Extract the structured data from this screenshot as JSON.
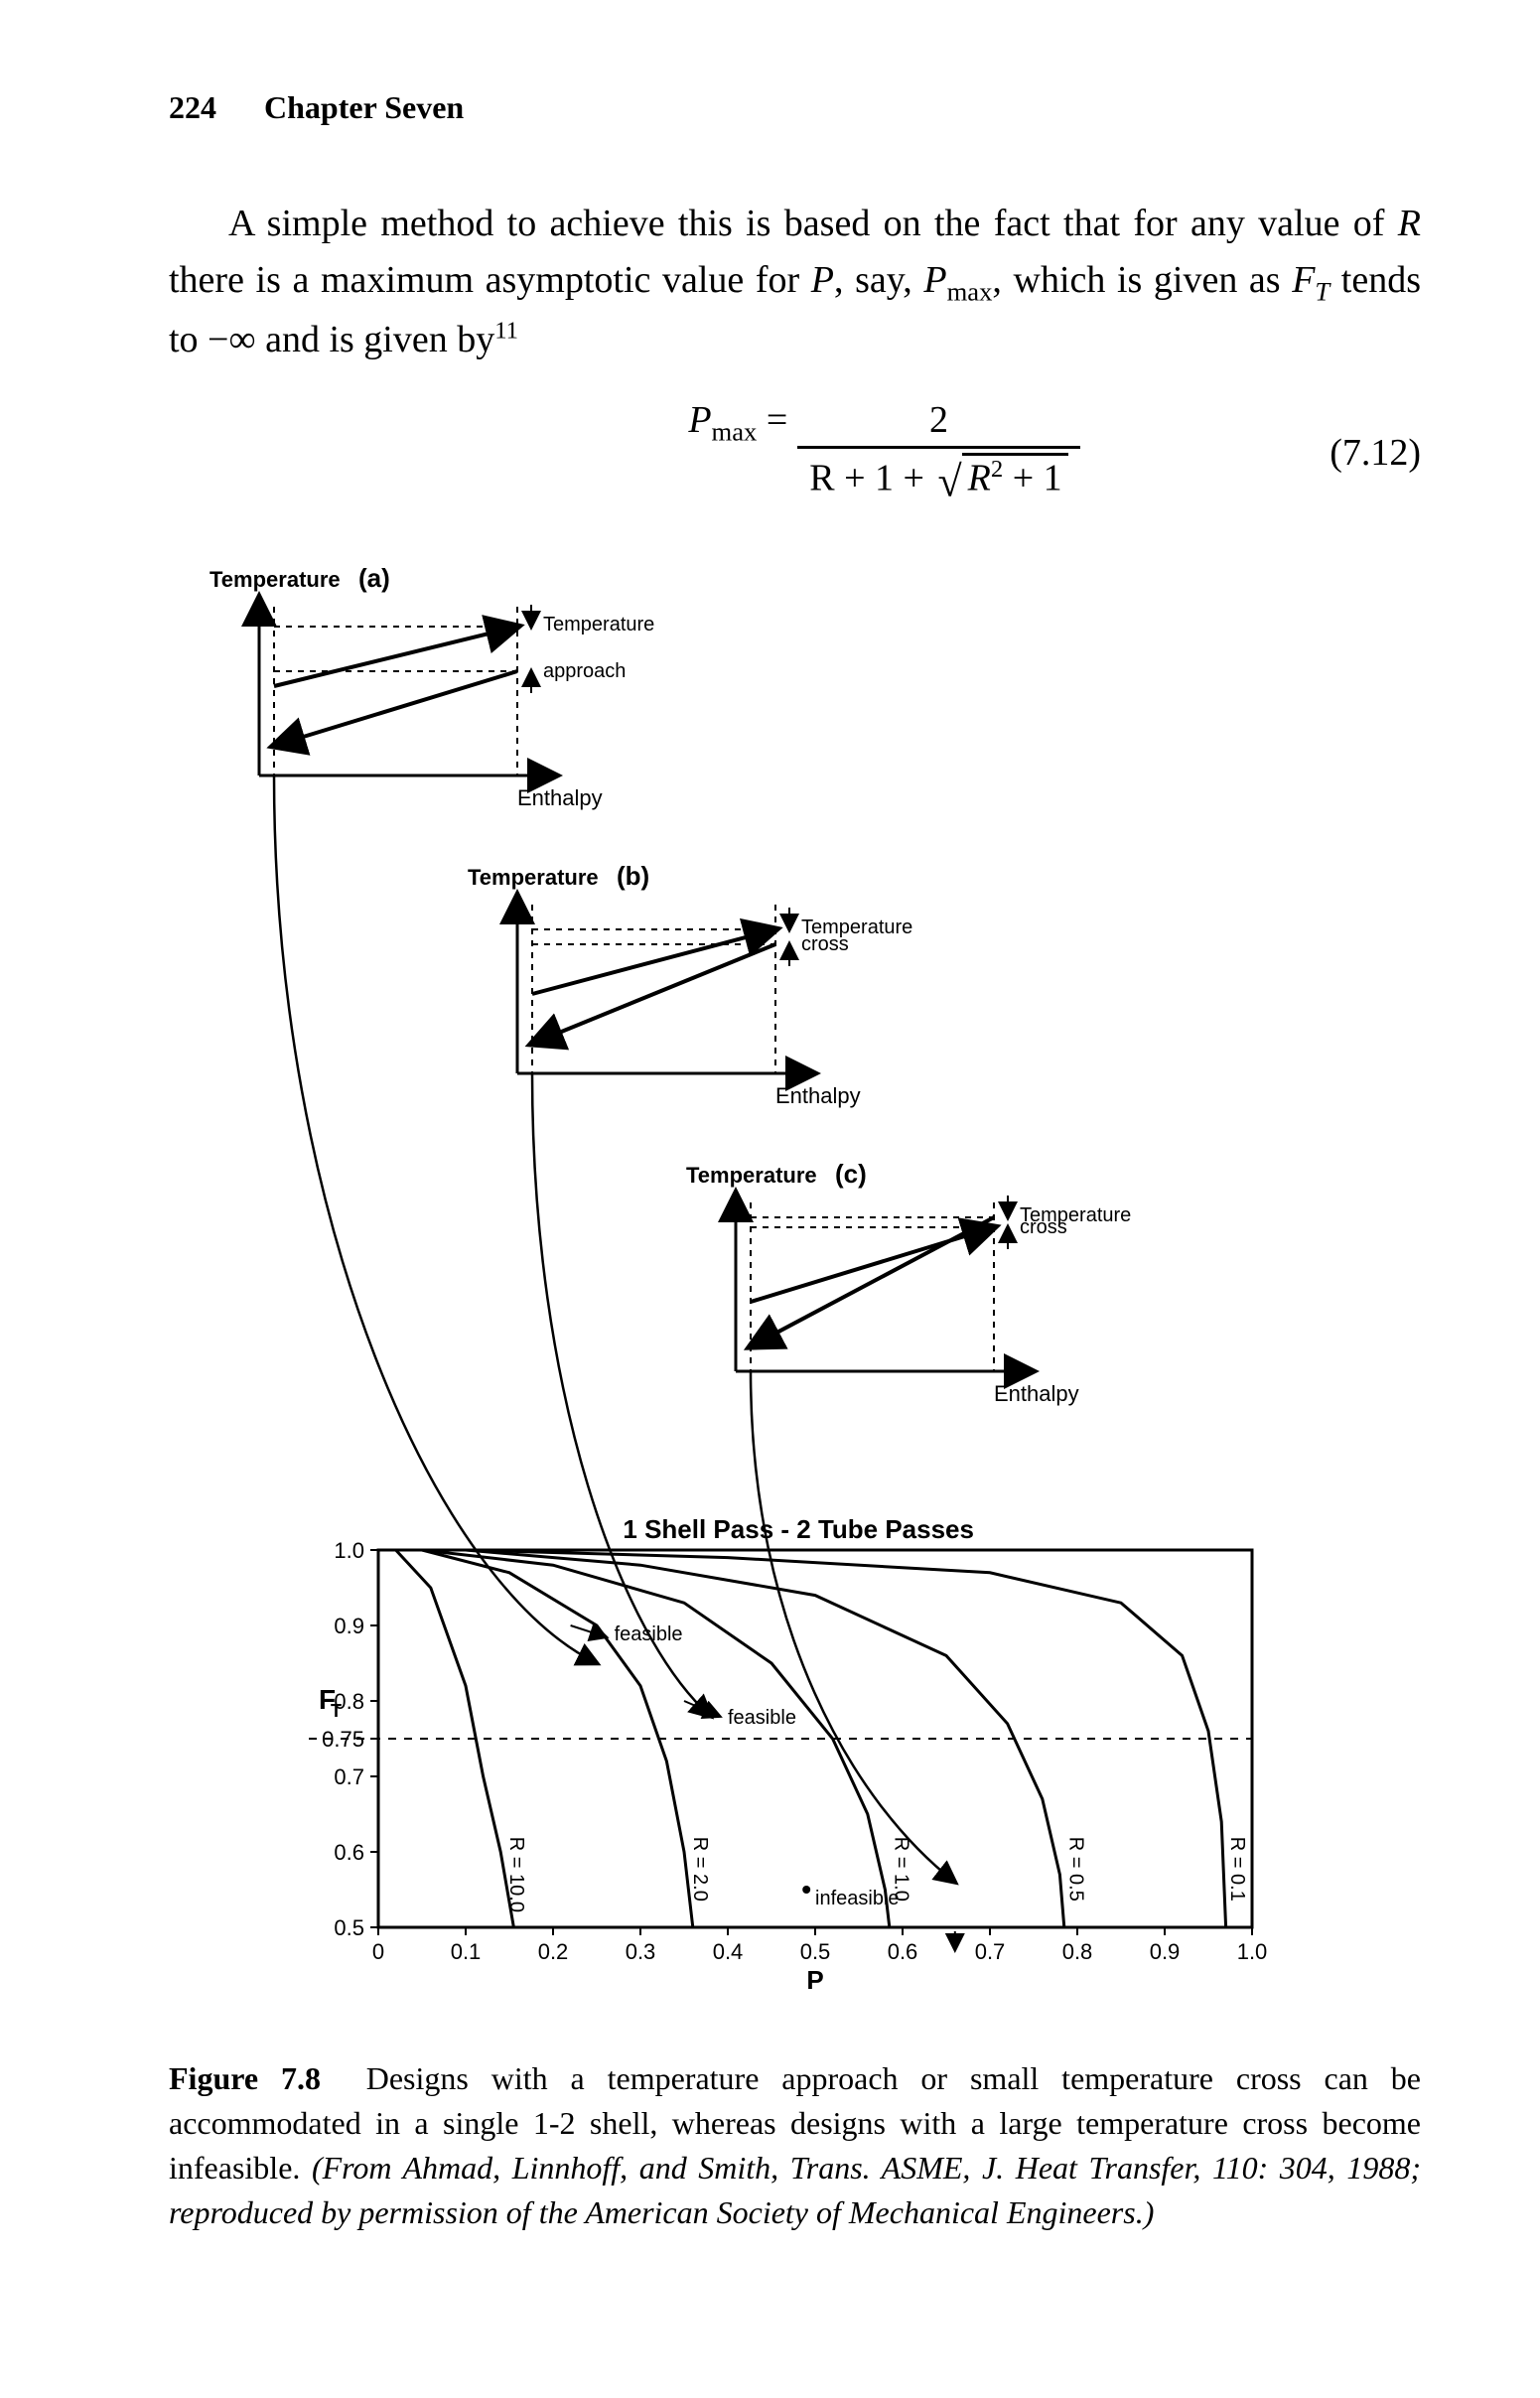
{
  "header": {
    "page_number": "224",
    "chapter": "Chapter Seven"
  },
  "paragraph": {
    "text_html": "A simple method to achieve this is based on the fact that for any value of <span class='it'>R</span> there is a maximum asymptotic value for <span class='it'>P</span>, say, <span class='it'>P</span><sub>max</sub>, which is given as <span class='it'>F<sub>T</sub></span> tends to −∞ and is given by<sup>11</sup>"
  },
  "equation": {
    "lhs_html": "<span class='it'>P</span><sub>max</sub> =",
    "numerator": "2",
    "den_before": "R + 1 + ",
    "radicand_html": "<span class='it'>R</span><sup>2</sup> + 1",
    "number": "(7.12)"
  },
  "figure": {
    "panels": {
      "a": {
        "label": "(a)",
        "ylabel": "Temperature",
        "xlabel": "Enthalpy",
        "annot_top": "Temperature",
        "annot_bot": "approach"
      },
      "b": {
        "label": "(b)",
        "ylabel": "Temperature",
        "xlabel": "Enthalpy",
        "annot_top": "Temperature",
        "annot_bot": "cross"
      },
      "c": {
        "label": "(c)",
        "ylabel": "Temperature",
        "xlabel": "Enthalpy",
        "annot_top": "Temperature",
        "annot_bot": "cross"
      }
    },
    "chart": {
      "title": "1 Shell Pass - 2 Tube Passes",
      "ylabel": "F",
      "ylabel_sub": "T",
      "xlabel": "P",
      "xticks": [
        0,
        0.1,
        0.2,
        0.3,
        0.4,
        0.5,
        0.6,
        0.7,
        0.8,
        0.9,
        1.0
      ],
      "xtick_labels": [
        "0",
        "0.1",
        "0.2",
        "0.3",
        "0.4",
        "0.5",
        "0.6",
        "0.7",
        "0.8",
        "0.9",
        "1.0"
      ],
      "yticks": [
        0.5,
        0.6,
        0.7,
        0.75,
        0.8,
        0.9,
        1.0
      ],
      "ytick_labels": [
        "0.5",
        "0.6",
        "0.7",
        "0.75",
        "0.8",
        "0.9",
        "1.0"
      ],
      "xlim": [
        0,
        1.0
      ],
      "ylim": [
        0.5,
        1.0
      ],
      "hline_y": 0.75,
      "curves": [
        {
          "label": "R = 10.0",
          "pts": [
            [
              0.02,
              1.0
            ],
            [
              0.06,
              0.95
            ],
            [
              0.1,
              0.82
            ],
            [
              0.12,
              0.7
            ],
            [
              0.14,
              0.6
            ],
            [
              0.155,
              0.5
            ]
          ]
        },
        {
          "label": "R = 2.0",
          "pts": [
            [
              0.05,
              1.0
            ],
            [
              0.15,
              0.97
            ],
            [
              0.25,
              0.9
            ],
            [
              0.3,
              0.82
            ],
            [
              0.33,
              0.72
            ],
            [
              0.35,
              0.6
            ],
            [
              0.36,
              0.5
            ]
          ]
        },
        {
          "label": "R = 1.0",
          "pts": [
            [
              0.05,
              1.0
            ],
            [
              0.2,
              0.98
            ],
            [
              0.35,
              0.93
            ],
            [
              0.45,
              0.85
            ],
            [
              0.52,
              0.75
            ],
            [
              0.56,
              0.65
            ],
            [
              0.58,
              0.55
            ],
            [
              0.585,
              0.5
            ]
          ]
        },
        {
          "label": "R = 0.5",
          "pts": [
            [
              0.1,
              1.0
            ],
            [
              0.3,
              0.98
            ],
            [
              0.5,
              0.94
            ],
            [
              0.65,
              0.86
            ],
            [
              0.72,
              0.77
            ],
            [
              0.76,
              0.67
            ],
            [
              0.78,
              0.57
            ],
            [
              0.785,
              0.5
            ]
          ]
        },
        {
          "label": "R = 0.1",
          "pts": [
            [
              0.1,
              1.0
            ],
            [
              0.4,
              0.99
            ],
            [
              0.7,
              0.97
            ],
            [
              0.85,
              0.93
            ],
            [
              0.92,
              0.86
            ],
            [
              0.95,
              0.76
            ],
            [
              0.965,
              0.64
            ],
            [
              0.97,
              0.5
            ]
          ]
        }
      ],
      "annotations": {
        "feasible1": "feasible",
        "feasible2": "feasible",
        "infeasible": "infeasible"
      },
      "colors": {
        "axis": "#000000",
        "curve": "#000000",
        "dash": "#000000",
        "bg": "#ffffff"
      },
      "line_width": 2,
      "font_size_axis": 24,
      "font_size_tick": 22,
      "font_size_curve_label": 20
    },
    "connector_targets": {
      "a": [
        0.25,
        0.85
      ],
      "b": [
        0.38,
        0.78
      ],
      "c": [
        0.66,
        0.56
      ]
    }
  },
  "caption": {
    "label": "Figure 7.8",
    "text": "Designs with a temperature approach or small temperature cross can be accommodated in a single 1-2 shell, whereas designs with a large temperature cross become infeasible.",
    "citation": "(From Ahmad, Linnhoff, and Smith, Trans. ASME, J. Heat Transfer, 110: 304, 1988; reproduced by permission of the American Society of Mechanical Engineers.)"
  }
}
